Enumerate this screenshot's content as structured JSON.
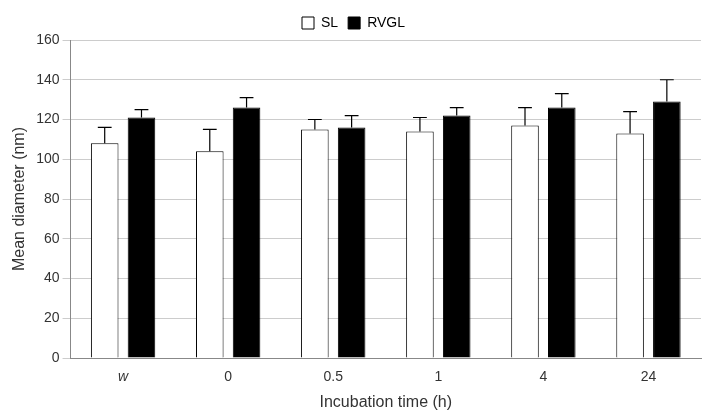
{
  "chart_data": {
    "type": "bar",
    "x_label": "Incubation time (h)",
    "y_label": "Mean diameter (nm)",
    "categories": [
      "w",
      "0",
      "0.5",
      "1",
      "4",
      "24"
    ],
    "series": [
      {
        "name": "SL",
        "color": "#ffffff",
        "values": [
          108,
          104,
          115,
          114,
          117,
          113
        ],
        "errors": [
          8,
          11,
          5,
          7,
          9,
          11
        ]
      },
      {
        "name": "RVGL",
        "color": "#000000",
        "values": [
          121,
          126,
          116,
          122,
          126,
          129
        ],
        "errors": [
          4,
          5,
          6,
          4,
          7,
          11
        ]
      }
    ],
    "ylim": [
      0,
      160
    ],
    "yticks": [
      0,
      20,
      40,
      60,
      80,
      100,
      120,
      140,
      160
    ],
    "grid": true,
    "legend": "top"
  }
}
